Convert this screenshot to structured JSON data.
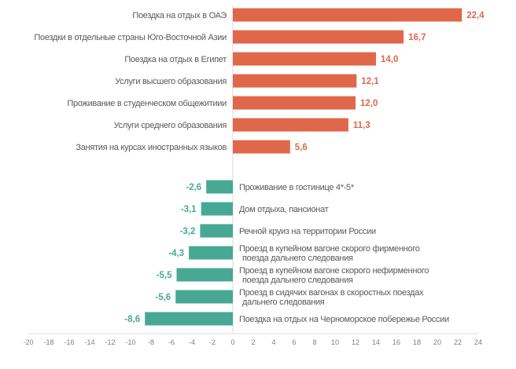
{
  "chart_data": {
    "type": "bar",
    "orientation": "horizontal",
    "title": "",
    "xlabel": "",
    "ylabel": "",
    "xlim": [
      -20,
      24
    ],
    "x_ticks": [
      "-20",
      "-18",
      "-16",
      "-14",
      "-12",
      "-10",
      "-8",
      "-6",
      "-4",
      "-2",
      "0",
      "2",
      "4",
      "6",
      "8",
      "10",
      "12",
      "14",
      "16",
      "18",
      "20",
      "22",
      "24"
    ],
    "grid": false,
    "colors": {
      "positive": "#E0684A",
      "negative": "#47A994",
      "label": "#595959",
      "axis": "#D9D9D9"
    },
    "positive": {
      "categories": [
        "Поездка на отдых в ОАЭ",
        "Поездки в отдельные страны Юго-Восточной Азии",
        "Поездка на отдых в Египет",
        "Услуги высшего образования",
        "Проживание в студенческом общежитиии",
        "Услуги среднего образования",
        "Занятия на курсах иностранных языков"
      ],
      "values": [
        22.4,
        16.7,
        14.0,
        12.1,
        12.0,
        11.3,
        5.6
      ],
      "value_labels": [
        "22,4",
        "16,7",
        "14,0",
        "12,1",
        "12,0",
        "11,3",
        "5,6"
      ]
    },
    "negative": {
      "categories": [
        [
          "Проживание в гостинице 4*-5*"
        ],
        [
          "Дом отдыха, пансионат"
        ],
        [
          "Речной круиз на территории России"
        ],
        [
          "Проезд в купейном вагоне скорого фирменного",
          "поезда дальнего следования"
        ],
        [
          "Проезд в купейном вагоне скорого нефирменного",
          "поезда  дальнего следования"
        ],
        [
          "Проезд в сидячих вагонах в скоростных поездах",
          "дальнего следования"
        ],
        [
          "Поездка на отдых на Черноморское побережье России"
        ]
      ],
      "values": [
        -2.6,
        -3.1,
        -3.2,
        -4.3,
        -5.5,
        -5.6,
        -8.6
      ],
      "value_labels": [
        "-2,6",
        "-3,1",
        "-3,2",
        "-4,3",
        "-5,5",
        "-5,6",
        "-8,6"
      ]
    }
  }
}
